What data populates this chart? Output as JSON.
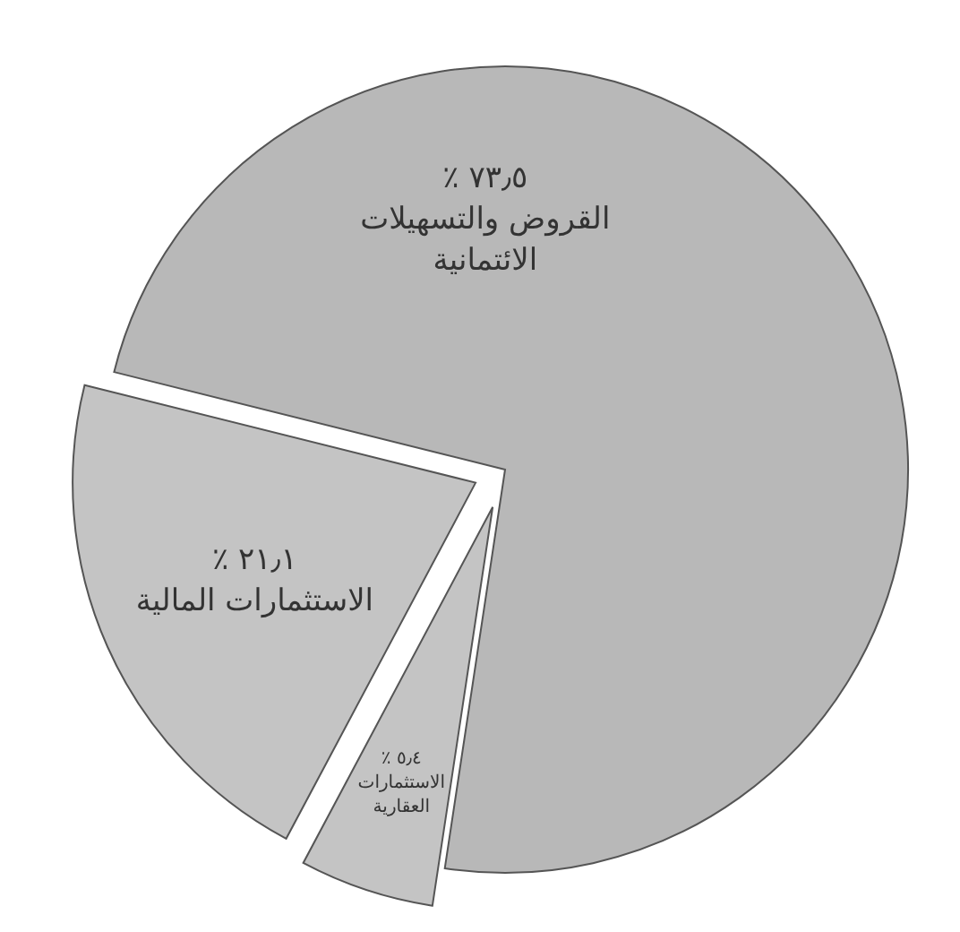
{
  "chart_data": {
    "type": "pie",
    "categories": [
      "القروض والتسهيلات الائتمانية",
      "الاستثمارات العقارية",
      "الاستثمارات المالية"
    ],
    "values": [
      73.5,
      5.4,
      21.1
    ],
    "colors": [
      "#b8b8b8",
      "#c4c4c4",
      "#c4c4c4"
    ],
    "value_labels": [
      "٧٣٫٥ ٪",
      "٥٫٤ ٪",
      "٢١٫١ ٪"
    ]
  }
}
